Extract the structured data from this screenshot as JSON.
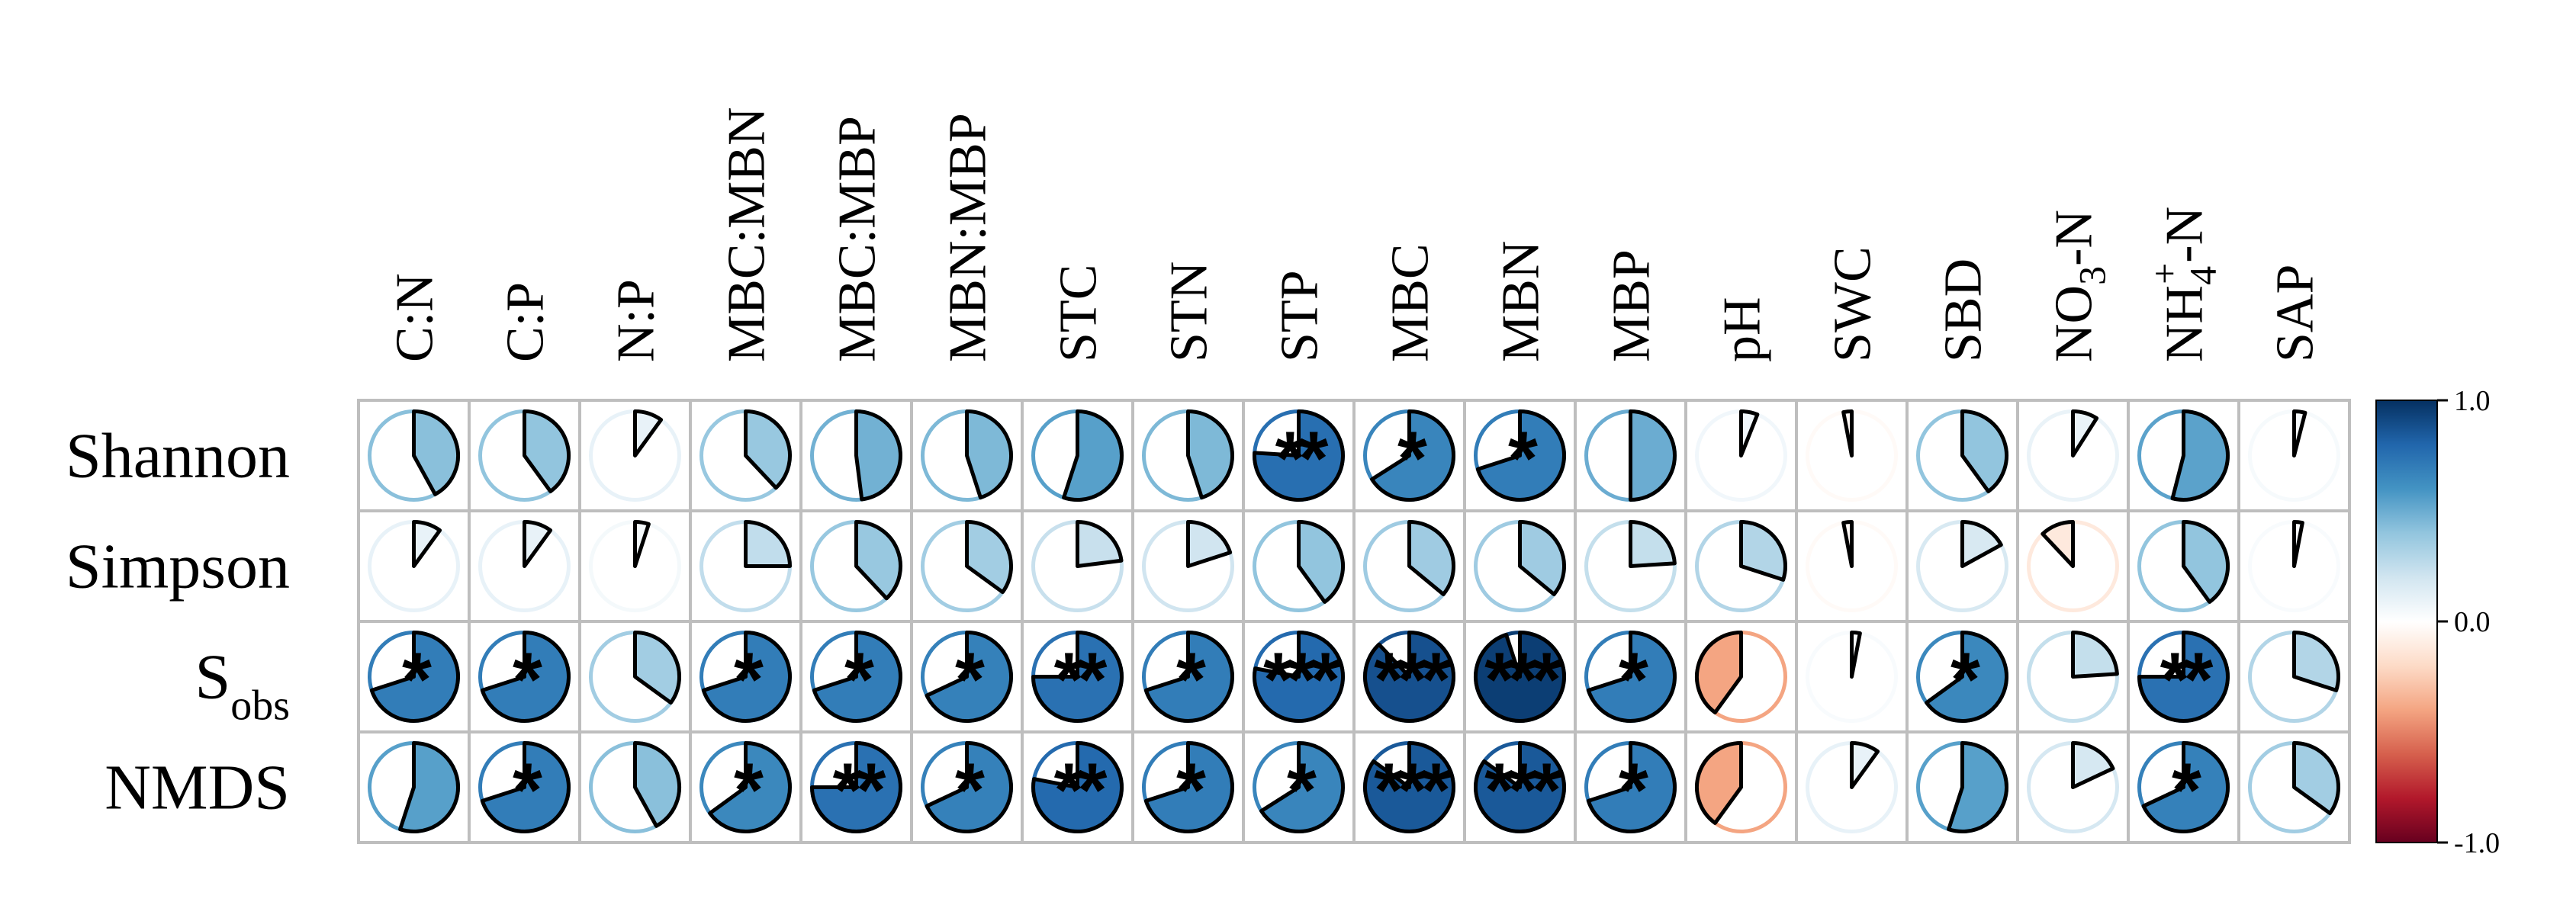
{
  "chart_data": {
    "type": "heatmap",
    "glyph": "pie",
    "columns": [
      {
        "base": "C:N"
      },
      {
        "base": "C:P"
      },
      {
        "base": "N:P"
      },
      {
        "base": "MBC:MBN"
      },
      {
        "base": "MBC:MBP"
      },
      {
        "base": "MBN:MBP"
      },
      {
        "base": "STC"
      },
      {
        "base": "STN"
      },
      {
        "base": "STP"
      },
      {
        "base": "MBC"
      },
      {
        "base": "MBN"
      },
      {
        "base": "MBP"
      },
      {
        "base": "pH"
      },
      {
        "base": "SWC"
      },
      {
        "base": "SBD"
      },
      {
        "pre": "NO",
        "sub": "3",
        "post": "-N"
      },
      {
        "pre": "NH",
        "sub": "4",
        "sup": "+",
        "post": "-N"
      },
      {
        "base": "SAP"
      }
    ],
    "rows": [
      {
        "base": "Shannon"
      },
      {
        "base": "Simpson"
      },
      {
        "base": "S",
        "sub": "obs"
      },
      {
        "base": "NMDS"
      }
    ],
    "values": [
      [
        0.42,
        0.4,
        0.1,
        0.38,
        0.48,
        0.45,
        0.55,
        0.45,
        0.76,
        0.66,
        0.7,
        0.5,
        0.06,
        -0.03,
        0.4,
        0.09,
        0.54,
        0.04
      ],
      [
        0.1,
        0.1,
        0.05,
        0.25,
        0.38,
        0.35,
        0.23,
        0.2,
        0.4,
        0.36,
        0.36,
        0.24,
        0.3,
        -0.03,
        0.17,
        -0.12,
        0.4,
        0.03
      ],
      [
        0.7,
        0.7,
        0.35,
        0.7,
        0.7,
        0.68,
        0.75,
        0.7,
        0.78,
        0.88,
        0.95,
        0.7,
        -0.4,
        0.03,
        0.65,
        0.24,
        0.75,
        0.3
      ],
      [
        0.55,
        0.7,
        0.42,
        0.65,
        0.75,
        0.68,
        0.78,
        0.7,
        0.66,
        0.85,
        0.85,
        0.7,
        -0.4,
        0.1,
        0.55,
        0.18,
        0.68,
        0.35
      ]
    ],
    "stars": [
      [
        "",
        "",
        "",
        "",
        "",
        "",
        "",
        "",
        "**",
        "*",
        "*",
        "",
        "",
        "",
        "",
        "",
        "",
        ""
      ],
      [
        "",
        "",
        "",
        "",
        "",
        "",
        "",
        "",
        "",
        "",
        "",
        "",
        "",
        "",
        "",
        "",
        "",
        ""
      ],
      [
        "*",
        "*",
        "",
        "*",
        "*",
        "*",
        "**",
        "*",
        "***",
        "***",
        "***",
        "*",
        "",
        "",
        "*",
        "",
        "**",
        ""
      ],
      [
        "",
        "*",
        "",
        "*",
        "**",
        "*",
        "**",
        "*",
        "*",
        "***",
        "***",
        "*",
        "",
        "",
        "",
        "",
        "*",
        ""
      ]
    ],
    "colorbar": {
      "ticks": [
        "1.0",
        "0.0",
        "-1.0"
      ],
      "range": [
        -1,
        1
      ],
      "colors": [
        "#67001F",
        "#B2182B",
        "#D6604D",
        "#F4A582",
        "#FDDBC7",
        "#FFFFFF",
        "#D1E5F0",
        "#92C5DE",
        "#4393C3",
        "#2166AC",
        "#053061"
      ]
    },
    "grid": true,
    "legend": "right"
  }
}
